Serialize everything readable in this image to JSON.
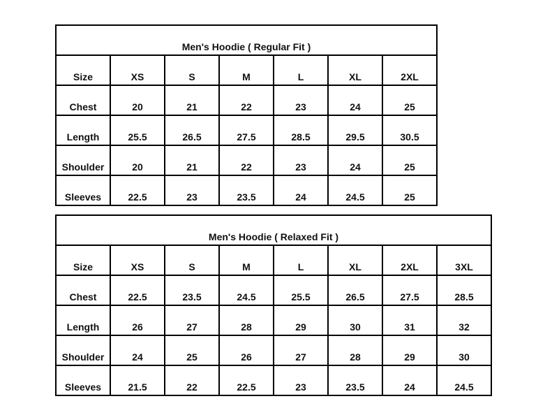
{
  "tables": [
    {
      "title": "Men's Hoodie ( Regular Fit )",
      "rows": [
        [
          "Size",
          "XS",
          "S",
          "M",
          "L",
          "XL",
          "2XL"
        ],
        [
          "Chest",
          "20",
          "21",
          "22",
          "23",
          "24",
          "25"
        ],
        [
          "Length",
          "25.5",
          "26.5",
          "27.5",
          "28.5",
          "29.5",
          "30.5"
        ],
        [
          "Shoulder",
          "20",
          "21",
          "22",
          "23",
          "24",
          "25"
        ],
        [
          "Sleeves",
          "22.5",
          "23",
          "23.5",
          "24",
          "24.5",
          "25"
        ]
      ]
    },
    {
      "title": "Men's Hoodie (  Relaxed Fit )",
      "rows": [
        [
          "Size",
          "XS",
          "S",
          "M",
          "L",
          "XL",
          "2XL",
          "3XL"
        ],
        [
          "Chest",
          "22.5",
          "23.5",
          "24.5",
          "25.5",
          "26.5",
          "27.5",
          "28.5"
        ],
        [
          "Length",
          "26",
          "27",
          "28",
          "29",
          "30",
          "31",
          "32"
        ],
        [
          "Shoulder",
          "24",
          "25",
          "26",
          "27",
          "28",
          "29",
          "30"
        ],
        [
          "Sleeves",
          "21.5",
          "22",
          "22.5",
          "23",
          "23.5",
          "24",
          "24.5"
        ]
      ]
    }
  ]
}
